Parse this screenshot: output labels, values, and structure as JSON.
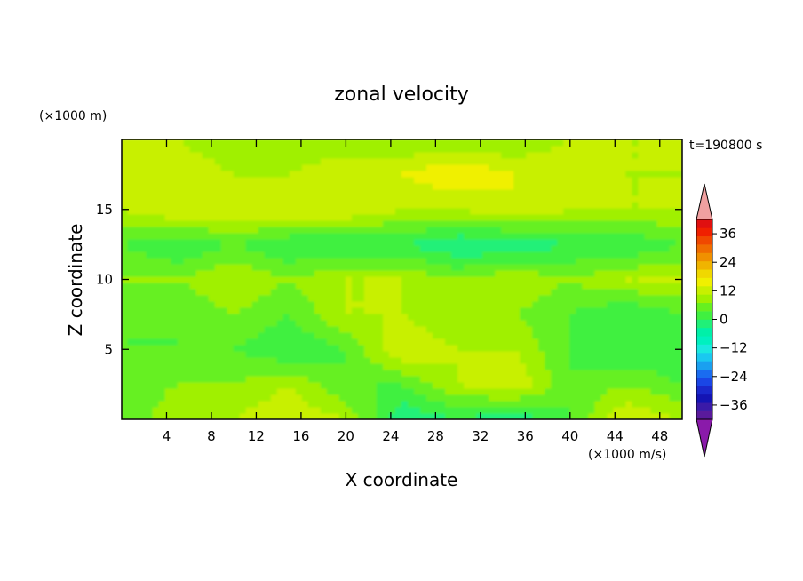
{
  "chart_data": {
    "type": "heatmap",
    "title": "zonal velocity",
    "xlabel": "X coordinate",
    "ylabel": "Z coordinate",
    "x_unit": "(×1000 m/s)",
    "y_unit": "(×1000 m)",
    "time_label": "t=190800 s",
    "xlim": [
      0,
      50
    ],
    "ylim": [
      0,
      20
    ],
    "xticks": [
      4,
      8,
      12,
      16,
      20,
      24,
      28,
      32,
      36,
      40,
      44,
      48
    ],
    "yticks": [
      5,
      10,
      15
    ],
    "colorbar": {
      "levels": [
        -42,
        -39,
        -36,
        -33,
        -30,
        -27,
        -24,
        -21,
        -18,
        -15,
        -12,
        -9,
        -6,
        -3,
        0,
        3,
        6,
        9,
        12,
        15,
        18,
        21,
        24,
        27,
        30,
        33,
        36,
        39,
        42
      ],
      "labels": [
        36,
        24,
        12,
        0,
        -12,
        -24,
        -36
      ],
      "label_text": [
        "36",
        "24",
        "12",
        "0",
        "−12",
        "−24",
        "−36"
      ],
      "colors": [
        "#5a1a9c",
        "#3a1aa8",
        "#1414b4",
        "#1a28cc",
        "#1a46e6",
        "#1a6cf0",
        "#1aa0f0",
        "#1ac8f0",
        "#1ae8e0",
        "#00f0c0",
        "#00f0a8",
        "#20f078",
        "#40f040",
        "#66f020",
        "#a0f000",
        "#c8f000",
        "#f0f000",
        "#f0d800",
        "#f0b400",
        "#f09000",
        "#f06c00",
        "#f04800",
        "#f02000",
        "#e01010"
      ],
      "under_color": "#8a1aaa",
      "over_color": "#f0a0a0"
    },
    "field": {
      "description_values": "approximate velocity values (x1000 m/s) on a coarse grid, rows from z=0 (bottom) to z=20 (top), columns from x=0 to x=50",
      "x": [
        0,
        5,
        10,
        15,
        20,
        25,
        30,
        35,
        40,
        45,
        50
      ],
      "z": [
        0,
        2.5,
        5,
        7.5,
        10,
        12.5,
        15,
        17.5,
        20
      ],
      "values": [
        [
          -3,
          3,
          3,
          6,
          3,
          -9,
          -6,
          -9,
          -3,
          6,
          3
        ],
        [
          -3,
          0,
          0,
          3,
          -3,
          -3,
          3,
          6,
          -3,
          0,
          -3
        ],
        [
          -3,
          -3,
          -3,
          -6,
          -3,
          6,
          3,
          3,
          -3,
          -6,
          -6
        ],
        [
          -3,
          -3,
          0,
          -3,
          3,
          3,
          0,
          0,
          -3,
          -6,
          -3
        ],
        [
          0,
          0,
          3,
          0,
          3,
          3,
          0,
          3,
          0,
          3,
          3
        ],
        [
          -3,
          -6,
          -3,
          -6,
          -6,
          -6,
          -9,
          -9,
          -6,
          -6,
          -3
        ],
        [
          3,
          6,
          6,
          6,
          6,
          3,
          3,
          6,
          3,
          3,
          3
        ],
        [
          3,
          6,
          3,
          3,
          6,
          6,
          9,
          6,
          6,
          3,
          3
        ],
        [
          3,
          3,
          0,
          0,
          0,
          0,
          0,
          0,
          3,
          3,
          3
        ]
      ]
    }
  }
}
